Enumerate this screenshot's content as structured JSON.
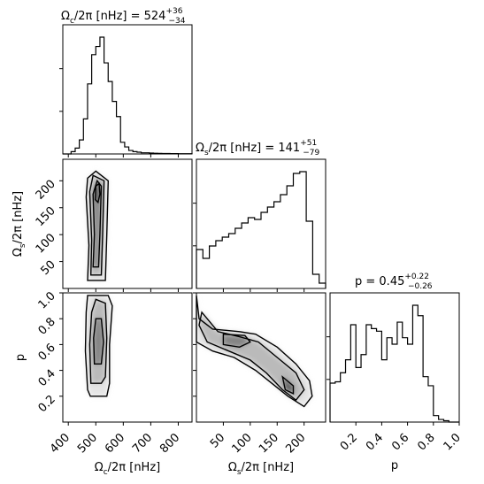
{
  "chart_data": [
    {
      "type": "histogram",
      "panel": "omega_c_marginal",
      "title_main": "Ω",
      "title_sub": "c",
      "title_rest": "/2π [nHz] = 524",
      "title_sup": "+36",
      "title_inf": "−34",
      "xlim": [
        380,
        850
      ],
      "bins": [
        380,
        395,
        410,
        425,
        440,
        455,
        470,
        485,
        500,
        515,
        530,
        545,
        560,
        575,
        590,
        605,
        620,
        635,
        650,
        665,
        680,
        695,
        710,
        725,
        740,
        755,
        770,
        785,
        800,
        815,
        830,
        850
      ],
      "counts": [
        0,
        0,
        0.02,
        0.05,
        0.12,
        0.3,
        0.6,
        0.85,
        0.92,
        1.0,
        0.78,
        0.62,
        0.45,
        0.32,
        0.1,
        0.06,
        0.03,
        0.02,
        0.015,
        0.01,
        0.01,
        0.008,
        0.006,
        0.005,
        0.004,
        0.004,
        0.003,
        0.003,
        0.002,
        0.002,
        0.002
      ]
    },
    {
      "type": "histogram",
      "panel": "omega_s_marginal",
      "title_main": "Ω",
      "title_sub": "s",
      "title_rest": "/2π [nHz] = 141",
      "title_sup": "+51",
      "title_inf": "−79",
      "xlim": [
        0,
        240
      ],
      "bins": [
        0,
        12,
        24,
        36,
        48,
        60,
        72,
        84,
        96,
        108,
        120,
        132,
        144,
        156,
        168,
        180,
        192,
        204,
        216,
        228,
        240
      ],
      "counts": [
        0.22,
        0.17,
        0.24,
        0.27,
        0.29,
        0.31,
        0.34,
        0.37,
        0.4,
        0.39,
        0.43,
        0.46,
        0.49,
        0.53,
        0.58,
        0.65,
        0.66,
        0.38,
        0.08,
        0.03
      ]
    },
    {
      "type": "histogram",
      "panel": "p_marginal",
      "title": "p = 0.45",
      "title_sup": "+0.22",
      "title_inf": "−0.26",
      "xlim": [
        0,
        1
      ],
      "bins": [
        0,
        0.04,
        0.08,
        0.12,
        0.16,
        0.2,
        0.24,
        0.28,
        0.32,
        0.36,
        0.4,
        0.44,
        0.48,
        0.52,
        0.56,
        0.6,
        0.64,
        0.68,
        0.72,
        0.76,
        0.8,
        0.84,
        0.88,
        0.92,
        1.0
      ],
      "counts": [
        0.3,
        0.31,
        0.38,
        0.48,
        0.75,
        0.42,
        0.52,
        0.75,
        0.72,
        0.7,
        0.48,
        0.65,
        0.6,
        0.77,
        0.65,
        0.6,
        0.9,
        0.82,
        0.35,
        0.28,
        0.05,
        0.02,
        0.01,
        0
      ]
    },
    {
      "type": "heatmap",
      "panel": "omega_c_vs_omega_s",
      "xlim": [
        380,
        850
      ],
      "ylim": [
        0,
        240
      ],
      "description_points": [
        [
          480,
          180
        ],
        [
          500,
          200
        ],
        [
          510,
          150
        ],
        [
          520,
          120
        ],
        [
          500,
          60
        ],
        [
          510,
          40
        ],
        [
          780,
          205
        ],
        [
          820,
          210
        ]
      ],
      "contours": [
        [
          [
            470,
            15
          ],
          [
            475,
            80
          ],
          [
            465,
            170
          ],
          [
            470,
            205
          ],
          [
            500,
            218
          ],
          [
            545,
            200
          ],
          [
            540,
            100
          ],
          [
            535,
            15
          ]
        ],
        [
          [
            482,
            25
          ],
          [
            485,
            90
          ],
          [
            478,
            180
          ],
          [
            490,
            210
          ],
          [
            530,
            200
          ],
          [
            525,
            100
          ],
          [
            520,
            25
          ]
        ],
        [
          [
            490,
            40
          ],
          [
            495,
            100
          ],
          [
            490,
            175
          ],
          [
            505,
            200
          ],
          [
            520,
            190
          ],
          [
            515,
            100
          ],
          [
            510,
            40
          ]
        ],
        [
          [
            498,
            165
          ],
          [
            500,
            190
          ],
          [
            512,
            195
          ],
          [
            515,
            175
          ],
          [
            508,
            160
          ]
        ]
      ]
    },
    {
      "type": "heatmap",
      "panel": "omega_c_vs_p",
      "xlim": [
        380,
        850
      ],
      "ylim": [
        0,
        1
      ],
      "contours": [
        [
          [
            470,
            0.25
          ],
          [
            462,
            0.55
          ],
          [
            465,
            0.85
          ],
          [
            470,
            0.98
          ],
          [
            545,
            0.98
          ],
          [
            560,
            0.9
          ],
          [
            550,
            0.6
          ],
          [
            550,
            0.3
          ],
          [
            540,
            0.2
          ],
          [
            480,
            0.2
          ]
        ],
        [
          [
            482,
            0.3
          ],
          [
            478,
            0.6
          ],
          [
            485,
            0.85
          ],
          [
            500,
            0.95
          ],
          [
            535,
            0.92
          ],
          [
            540,
            0.65
          ],
          [
            535,
            0.35
          ],
          [
            520,
            0.3
          ]
        ],
        [
          [
            495,
            0.45
          ],
          [
            492,
            0.65
          ],
          [
            500,
            0.8
          ],
          [
            520,
            0.8
          ],
          [
            528,
            0.62
          ],
          [
            520,
            0.45
          ]
        ]
      ]
    },
    {
      "type": "heatmap",
      "panel": "omega_s_vs_p",
      "xlim": [
        0,
        240
      ],
      "ylim": [
        0,
        1
      ],
      "contours": [
        [
          [
            0,
            0.98
          ],
          [
            5,
            0.8
          ],
          [
            30,
            0.72
          ],
          [
            80,
            0.7
          ],
          [
            110,
            0.68
          ],
          [
            150,
            0.58
          ],
          [
            185,
            0.45
          ],
          [
            210,
            0.32
          ],
          [
            215,
            0.2
          ],
          [
            200,
            0.12
          ],
          [
            170,
            0.2
          ],
          [
            140,
            0.3
          ],
          [
            110,
            0.4
          ],
          [
            70,
            0.5
          ],
          [
            30,
            0.55
          ],
          [
            0,
            0.62
          ]
        ],
        [
          [
            10,
            0.85
          ],
          [
            40,
            0.7
          ],
          [
            80,
            0.66
          ],
          [
            115,
            0.62
          ],
          [
            150,
            0.5
          ],
          [
            185,
            0.38
          ],
          [
            200,
            0.25
          ],
          [
            185,
            0.17
          ],
          [
            160,
            0.25
          ],
          [
            130,
            0.38
          ],
          [
            100,
            0.48
          ],
          [
            60,
            0.55
          ],
          [
            20,
            0.62
          ],
          [
            5,
            0.75
          ]
        ],
        [
          [
            50,
            0.68
          ],
          [
            90,
            0.67
          ],
          [
            100,
            0.62
          ],
          [
            80,
            0.58
          ],
          [
            50,
            0.6
          ]
        ],
        [
          [
            160,
            0.35
          ],
          [
            180,
            0.28
          ],
          [
            180,
            0.22
          ],
          [
            165,
            0.25
          ]
        ]
      ]
    }
  ],
  "axes": {
    "x_omega_c": {
      "label_main": "Ω",
      "label_sub": "c",
      "label_rest": "/2π [nHz]",
      "ticks": [
        400,
        500,
        600,
        700,
        800
      ],
      "tick_labels": [
        "400",
        "500",
        "600",
        "700",
        "800"
      ]
    },
    "x_omega_s": {
      "label_main": "Ω",
      "label_sub": "s",
      "label_rest": "/2π [nHz]",
      "ticks": [
        50,
        100,
        150,
        200
      ],
      "tick_labels": [
        "50",
        "100",
        "150",
        "200"
      ]
    },
    "x_p": {
      "label": "p",
      "ticks": [
        0.2,
        0.4,
        0.6,
        0.8,
        1.0
      ],
      "tick_labels": [
        "0.2",
        "0.4",
        "0.6",
        "0.8",
        "1.0"
      ]
    },
    "y_omega_s": {
      "label_main": "Ω",
      "label_sub": "s",
      "label_rest": "/2π [nHz]",
      "ticks": [
        50,
        100,
        150,
        200
      ],
      "tick_labels": [
        "50",
        "100",
        "150",
        "200"
      ]
    },
    "y_p": {
      "label": "p",
      "ticks": [
        0.2,
        0.4,
        0.6,
        0.8,
        1.0
      ],
      "tick_labels": [
        "0.2",
        "0.4",
        "0.6",
        "0.8",
        "1.0"
      ]
    }
  }
}
